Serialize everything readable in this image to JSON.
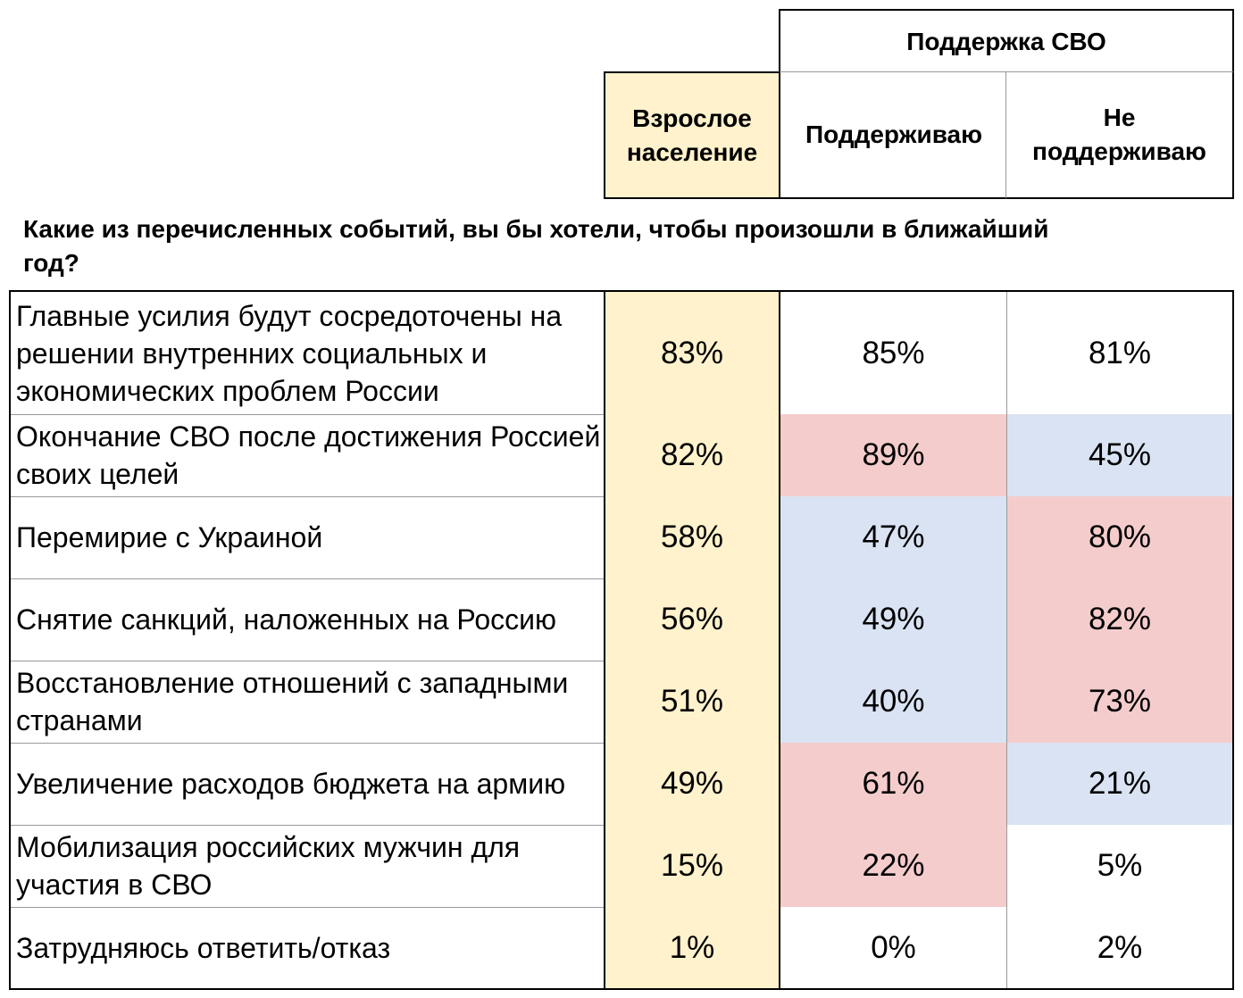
{
  "chart_data": {
    "type": "table",
    "header_group": "Поддержка СВО",
    "columns": [
      "Взрослое население",
      "Поддерживаю",
      "Не поддерживаю"
    ],
    "question": "Какие из перечисленных событий, вы бы хотели, чтобы произошли в ближайший год?",
    "rows": [
      {
        "label": "Главные усилия будут сосредоточены на решении внутренних социальных и экономических проблем России",
        "values": [
          "83%",
          "85%",
          "81%"
        ],
        "colors": [
          "#fff2cc",
          "#ffffff",
          "#ffffff"
        ]
      },
      {
        "label": "Окончание СВО после достижения Россией своих целей",
        "values": [
          "82%",
          "89%",
          "45%"
        ],
        "colors": [
          "#fff2cc",
          "#f4cccc",
          "#dae3f3"
        ]
      },
      {
        "label": "Перемирие с Украиной",
        "values": [
          "58%",
          "47%",
          "80%"
        ],
        "colors": [
          "#fff2cc",
          "#dae3f3",
          "#f4cccc"
        ]
      },
      {
        "label": "Снятие санкций, наложенных на Россию",
        "values": [
          "56%",
          "49%",
          "82%"
        ],
        "colors": [
          "#fff2cc",
          "#dae3f3",
          "#f4cccc"
        ]
      },
      {
        "label": "Восстановление отношений с западными странами",
        "values": [
          "51%",
          "40%",
          "73%"
        ],
        "colors": [
          "#fff2cc",
          "#dae3f3",
          "#f4cccc"
        ]
      },
      {
        "label": "Увеличение расходов бюджета на армию",
        "values": [
          "49%",
          "61%",
          "21%"
        ],
        "colors": [
          "#fff2cc",
          "#f4cccc",
          "#dae3f3"
        ]
      },
      {
        "label": "Мобилизация российских мужчин для участия в СВО",
        "values": [
          "15%",
          "22%",
          "5%"
        ],
        "colors": [
          "#fff2cc",
          "#f4cccc",
          "#ffffff"
        ]
      },
      {
        "label": "Затрудняюсь ответить/отказ",
        "values": [
          "1%",
          "0%",
          "2%"
        ],
        "colors": [
          "#fff2cc",
          "#ffffff",
          "#ffffff"
        ]
      }
    ]
  }
}
